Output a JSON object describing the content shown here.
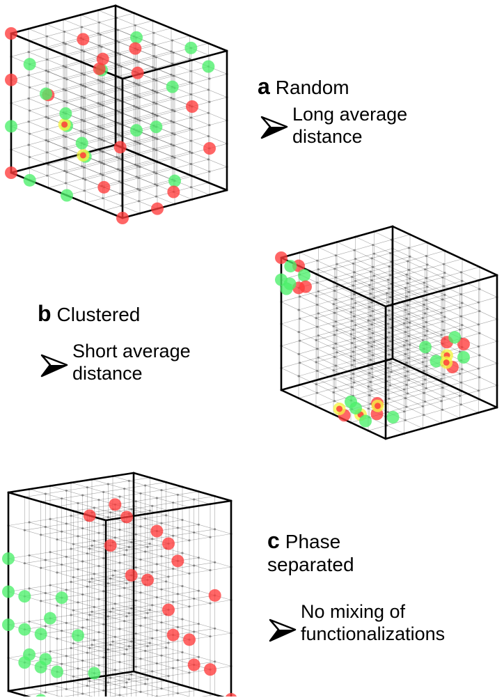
{
  "colors": {
    "red": "#ff3b3b",
    "green": "#4cf06a",
    "yellow": "#f5f542",
    "grid": "#000000"
  },
  "panels": [
    {
      "id": "a",
      "letter": "a",
      "title": "Random",
      "note_line1": "Long average",
      "note_line2": "distance",
      "pattern": "random"
    },
    {
      "id": "b",
      "letter": "b",
      "title": "Clustered",
      "note_line1": "Short average",
      "note_line2": "distance",
      "pattern": "clustered"
    },
    {
      "id": "c",
      "letter": "c",
      "title_line1": "Phase",
      "title_line2": "separated",
      "note_line1": "No mixing of",
      "note_line2": "functionalizations",
      "pattern": "phase-separated"
    }
  ],
  "icons": {
    "arrow": "pointer-arrow-icon"
  }
}
